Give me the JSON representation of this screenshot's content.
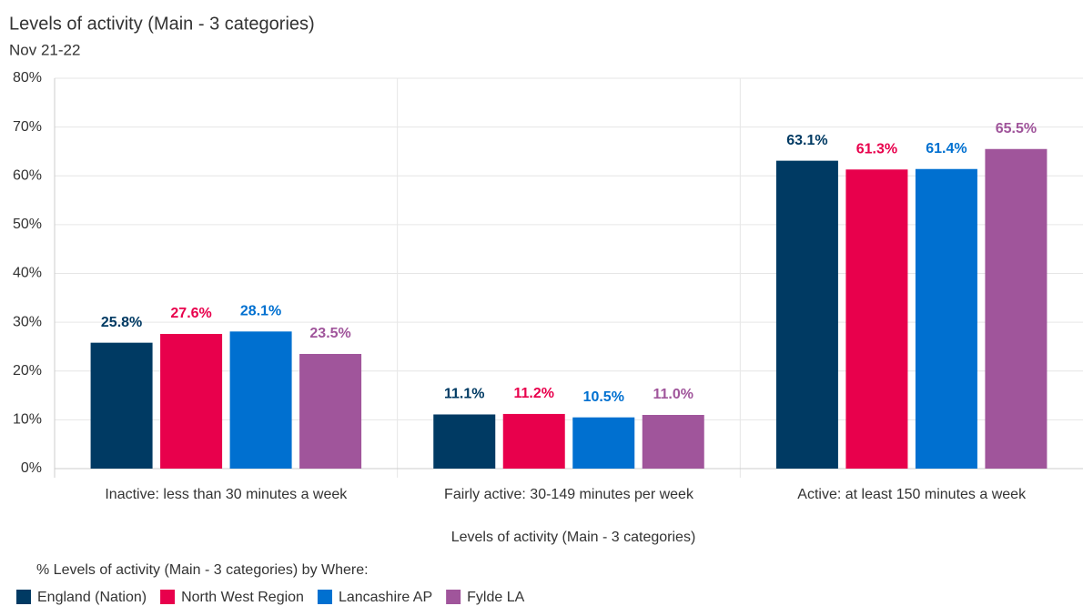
{
  "chart_data": {
    "type": "bar",
    "title": "Levels of activity (Main - 3 categories)",
    "subtitle": "Nov 21-22",
    "x_label": "Levels of activity (Main - 3 categories)",
    "legend_title": "% Levels of activity (Main - 3 categories) by Where:",
    "categories": [
      "Inactive: less than 30 minutes a week",
      "Fairly active: 30-149 minutes per week",
      "Active: at least 150 minutes a week"
    ],
    "series": [
      {
        "name": "England (Nation)",
        "color": "#003a63",
        "values": [
          25.8,
          11.1,
          63.1
        ],
        "value_labels": [
          "25.8%",
          "11.1%",
          "63.1%"
        ]
      },
      {
        "name": "North West Region",
        "color": "#e8004c",
        "values": [
          27.6,
          11.2,
          61.3
        ],
        "value_labels": [
          "27.6%",
          "11.2%",
          "61.3%"
        ]
      },
      {
        "name": "Lancashire AP",
        "color": "#0070d0",
        "values": [
          28.1,
          10.5,
          61.4
        ],
        "value_labels": [
          "28.1%",
          "10.5%",
          "61.4%"
        ]
      },
      {
        "name": "Fylde LA",
        "color": "#a0559b",
        "values": [
          23.5,
          11.0,
          65.5
        ],
        "value_labels": [
          "23.5%",
          "11.0%",
          "65.5%"
        ]
      }
    ],
    "ylim": [
      0,
      80
    ],
    "yticks": [
      {
        "value": 0,
        "label": "0%"
      },
      {
        "value": 10,
        "label": "10%"
      },
      {
        "value": 20,
        "label": "20%"
      },
      {
        "value": 30,
        "label": "30%"
      },
      {
        "value": 40,
        "label": "40%"
      },
      {
        "value": 50,
        "label": "50%"
      },
      {
        "value": 60,
        "label": "60%"
      },
      {
        "value": 70,
        "label": "70%"
      },
      {
        "value": 80,
        "label": "80%"
      }
    ],
    "grid": true,
    "legend": "bottom-left"
  }
}
